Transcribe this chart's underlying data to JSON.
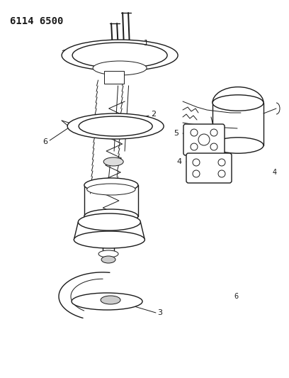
{
  "title": "6114 6500",
  "bg_color": "#ffffff",
  "line_color": "#1a1a1a",
  "title_fontsize": 10,
  "fig_w": 4.08,
  "fig_h": 5.33,
  "dpi": 100
}
